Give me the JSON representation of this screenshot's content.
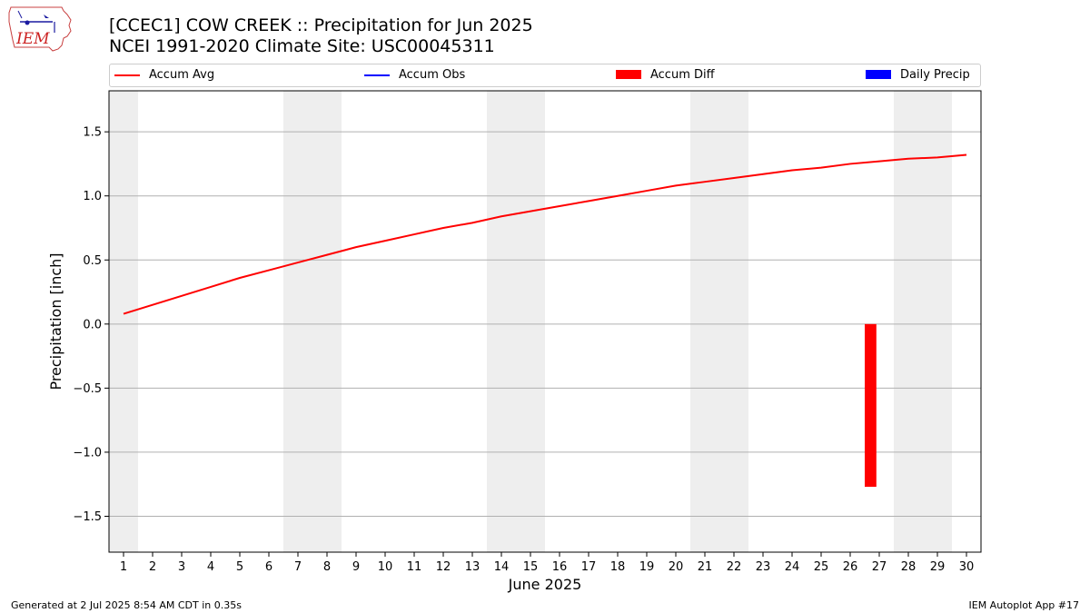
{
  "header": {
    "title_line1": "[CCEC1] COW CREEK :: Precipitation for Jun 2025",
    "title_line2": "NCEI 1991-2020 Climate Site: USC00045311",
    "logo_text": "IEM"
  },
  "legend": {
    "items": [
      {
        "label": "Accum Avg",
        "color": "#ff0000",
        "kind": "line"
      },
      {
        "label": "Accum Obs",
        "color": "#0000ff",
        "kind": "line"
      },
      {
        "label": "Accum Diff",
        "color": "#ff0000",
        "kind": "bar"
      },
      {
        "label": "Daily Precip",
        "color": "#0000ff",
        "kind": "bar"
      }
    ]
  },
  "footer": {
    "left": "Generated at 2 Jul 2025 8:54 AM CDT in 0.35s",
    "right": "IEM Autoplot App #17"
  },
  "chart_data": {
    "type": "line",
    "xlabel": "June 2025",
    "ylabel": "Precipitation [inch]",
    "xlim": [
      0.5,
      30.5
    ],
    "ylim": [
      -1.78,
      1.82
    ],
    "x_ticks": [
      1,
      2,
      3,
      4,
      5,
      6,
      7,
      8,
      9,
      10,
      11,
      12,
      13,
      14,
      15,
      16,
      17,
      18,
      19,
      20,
      21,
      22,
      23,
      24,
      25,
      26,
      27,
      28,
      29,
      30
    ],
    "y_ticks": [
      -1.5,
      -1.0,
      -0.5,
      0.0,
      0.5,
      1.0,
      1.5
    ],
    "y_tick_labels": [
      "−1.5",
      "−1.0",
      "−0.5",
      "0.0",
      "0.5",
      "1.0",
      "1.5"
    ],
    "grid": "horizontal",
    "weekend_shading": [
      [
        0.5,
        1.5
      ],
      [
        6.5,
        8.5
      ],
      [
        13.5,
        15.5
      ],
      [
        20.5,
        22.5
      ],
      [
        27.5,
        29.5
      ]
    ],
    "weekend_color": "#eeeeee",
    "series": [
      {
        "name": "Accum Avg",
        "kind": "line",
        "color": "#ff0000",
        "x": [
          1,
          2,
          3,
          4,
          5,
          6,
          7,
          8,
          9,
          10,
          11,
          12,
          13,
          14,
          15,
          16,
          17,
          18,
          19,
          20,
          21,
          22,
          23,
          24,
          25,
          26,
          27,
          28,
          29,
          30
        ],
        "values": [
          0.08,
          0.15,
          0.22,
          0.29,
          0.36,
          0.42,
          0.48,
          0.54,
          0.6,
          0.65,
          0.7,
          0.75,
          0.79,
          0.84,
          0.88,
          0.92,
          0.96,
          1.0,
          1.04,
          1.08,
          1.11,
          1.14,
          1.17,
          1.2,
          1.22,
          1.25,
          1.27,
          1.29,
          1.3,
          1.32
        ]
      },
      {
        "name": "Accum Diff",
        "kind": "bar",
        "color": "#ff0000",
        "x": [
          26.7
        ],
        "values": [
          -1.27
        ]
      }
    ]
  }
}
